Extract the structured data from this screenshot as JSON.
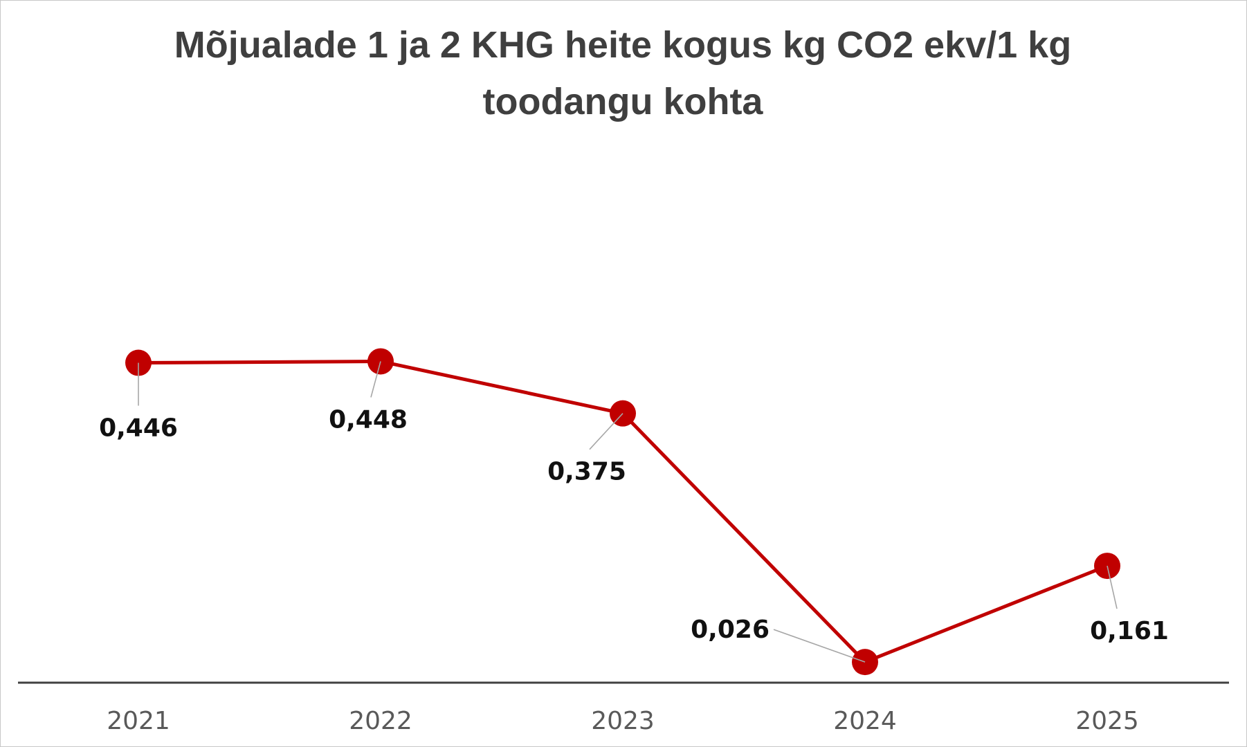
{
  "chart_data": {
    "type": "line",
    "title": "Mõjualade 1 ja 2 KHG heite kogus kg CO2 ekv/1 kg toodangu kohta",
    "categories": [
      "2021",
      "2022",
      "2023",
      "2024",
      "2025"
    ],
    "series": [
      {
        "values": [
          0.446,
          0.448,
          0.375,
          0.026,
          0.161
        ],
        "labels": [
          "0,446",
          "0,448",
          "0,375",
          "0,026",
          "0,161"
        ],
        "color": "#c00000"
      }
    ],
    "xlabel": "",
    "ylabel": "",
    "ylim": [
      0,
      0.5
    ],
    "grid": false,
    "legend": "none",
    "data_labels": true
  }
}
